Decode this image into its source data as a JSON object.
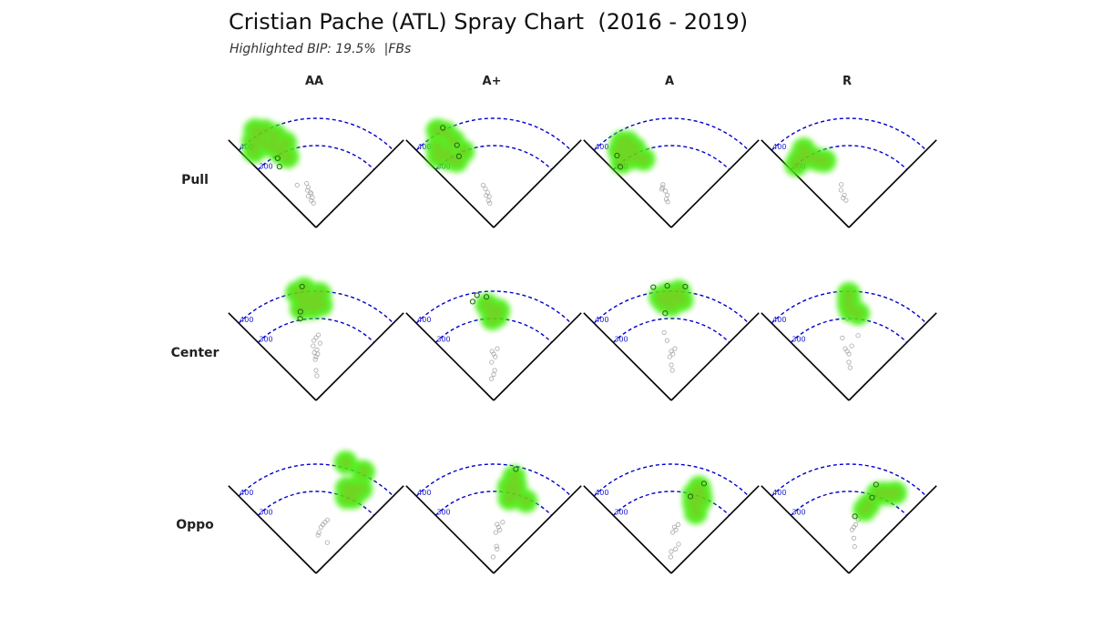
{
  "header": {
    "title": "Cristian Pache (ATL) Spray Chart  (2016 - 2019)",
    "subtitle": "Highlighted BIP: 19.5%  |FBs"
  },
  "columns": [
    "AA",
    "A+",
    "A",
    "R"
  ],
  "rows": [
    "Pull",
    "Center",
    "Oppo"
  ],
  "colors": {
    "field_line": "#000000",
    "arc": "#0000cc",
    "distance_label": "#1a1acc",
    "highlight": "#44ee11",
    "highlight_core": "#cc7722",
    "other_bip": "#aaaaaa"
  },
  "chart_data": {
    "type": "scatter",
    "title": "Cristian Pache (ATL) Spray Chart  (2016 - 2019)",
    "subtitle": "Highlighted BIP: 19.5%  |FBs",
    "distance_arcs_ft": [
      300,
      400
    ],
    "arc_labels": [
      "300",
      "400"
    ],
    "spray_angle_range_deg": [
      -45,
      45
    ],
    "angle_note": "spray angle in degrees, 0 = straight center, negative = toward pull (left) side; distance in feet",
    "panels": [
      {
        "row": "Pull",
        "col": "AA",
        "highlighted": [
          [
            -39,
            360
          ],
          [
            -36,
            390
          ],
          [
            -33,
            380
          ],
          [
            -30,
            350
          ],
          [
            -27,
            330
          ],
          [
            -25,
            300
          ],
          [
            -22,
            280
          ],
          [
            -32,
            420
          ],
          [
            -28,
            400
          ],
          [
            -24,
            370
          ],
          [
            -20,
            330
          ]
        ],
        "outline": [
          [
            -29,
            290
          ],
          [
            -31,
            260
          ]
        ],
        "other": [
          [
            -9,
            130
          ],
          [
            -11,
            150
          ],
          [
            -13,
            140
          ],
          [
            -7,
            110
          ],
          [
            -10,
            100
          ],
          [
            -12,
            165
          ],
          [
            -6,
            90
          ],
          [
            -24,
            170
          ],
          [
            -8,
            125
          ],
          [
            -14,
            118
          ]
        ]
      },
      {
        "row": "Pull",
        "col": "A+",
        "highlighted": [
          [
            -38,
            330
          ],
          [
            -35,
            360
          ],
          [
            -32,
            320
          ],
          [
            -30,
            410
          ],
          [
            -27,
            390
          ],
          [
            -25,
            350
          ],
          [
            -22,
            300
          ],
          [
            -29,
            280
          ],
          [
            -33,
            300
          ]
        ],
        "outline": [
          [
            -24,
            330
          ],
          [
            -26,
            290
          ],
          [
            -27,
            410
          ]
        ],
        "other": [
          [
            -10,
            130
          ],
          [
            -12,
            145
          ],
          [
            -8,
            115
          ],
          [
            -11,
            100
          ],
          [
            -14,
            160
          ],
          [
            -9,
            90
          ],
          [
            -13,
            120
          ]
        ]
      },
      {
        "row": "Pull",
        "col": "A",
        "highlighted": [
          [
            -37,
            300
          ],
          [
            -34,
            340
          ],
          [
            -31,
            310
          ],
          [
            -28,
            290
          ],
          [
            -25,
            320
          ],
          [
            -22,
            270
          ],
          [
            -30,
            360
          ],
          [
            -27,
            350
          ]
        ],
        "outline": [
          [
            -37,
            330
          ],
          [
            -40,
            290
          ]
        ],
        "other": [
          [
            -9,
            135
          ],
          [
            -12,
            150
          ],
          [
            -7,
            120
          ],
          [
            -10,
            105
          ],
          [
            -14,
            145
          ],
          [
            -8,
            95
          ],
          [
            -11,
            160
          ]
        ]
      },
      {
        "row": "Pull",
        "col": "R",
        "highlighted": [
          [
            -40,
            300
          ],
          [
            -36,
            310
          ],
          [
            -32,
            300
          ],
          [
            -28,
            290
          ],
          [
            -24,
            270
          ],
          [
            -20,
            260
          ],
          [
            -30,
            330
          ]
        ],
        "outline": [],
        "other": [
          [
            -10,
            160
          ],
          [
            -12,
            140
          ],
          [
            -8,
            120
          ],
          [
            -6,
            100
          ],
          [
            -11,
            110
          ]
        ]
      },
      {
        "row": "Center",
        "col": "AA",
        "highlighted": [
          [
            -8,
            380
          ],
          [
            -4,
            370
          ],
          [
            0,
            380
          ],
          [
            -10,
            400
          ],
          [
            -6,
            410
          ],
          [
            -2,
            340
          ],
          [
            3,
            350
          ],
          [
            -9,
            340
          ],
          [
            2,
            390
          ]
        ],
        "outline": [
          [
            -10,
            330
          ],
          [
            -11,
            305
          ],
          [
            -7,
            420
          ]
        ],
        "other": [
          [
            0,
            230
          ],
          [
            2,
            240
          ],
          [
            -2,
            220
          ],
          [
            0,
            160
          ],
          [
            2,
            170
          ],
          [
            -1,
            150
          ],
          [
            0,
            110
          ],
          [
            2,
            90
          ],
          [
            -3,
            200
          ],
          [
            4,
            210
          ],
          [
            1,
            185
          ],
          [
            -2,
            175
          ]
        ]
      },
      {
        "row": "Center",
        "col": "A+",
        "highlighted": [
          [
            -2,
            340
          ],
          [
            0,
            320
          ],
          [
            2,
            310
          ],
          [
            -1,
            300
          ],
          [
            3,
            330
          ],
          [
            -4,
            350
          ]
        ],
        "outline": [
          [
            -12,
            370
          ],
          [
            -9,
            390
          ],
          [
            -4,
            380
          ]
        ],
        "other": [
          [
            -2,
            180
          ],
          [
            0,
            170
          ],
          [
            2,
            160
          ],
          [
            4,
            190
          ],
          [
            -3,
            140
          ],
          [
            2,
            110
          ],
          [
            -6,
            80
          ],
          [
            0,
            95
          ]
        ]
      },
      {
        "row": "Center",
        "col": "A",
        "highlighted": [
          [
            -6,
            380
          ],
          [
            -2,
            390
          ],
          [
            2,
            380
          ],
          [
            6,
            370
          ],
          [
            0,
            350
          ],
          [
            -4,
            360
          ],
          [
            4,
            400
          ]
        ],
        "outline": [
          [
            -9,
            420
          ],
          [
            -2,
            420
          ],
          [
            7,
            420
          ],
          [
            -4,
            320
          ]
        ],
        "other": [
          [
            0,
            180
          ],
          [
            2,
            170
          ],
          [
            -2,
            160
          ],
          [
            4,
            190
          ],
          [
            -4,
            220
          ],
          [
            -6,
            250
          ],
          [
            0,
            130
          ],
          [
            2,
            110
          ]
        ]
      },
      {
        "row": "Center",
        "col": "R",
        "highlighted": [
          [
            0,
            390
          ],
          [
            0,
            370
          ],
          [
            0,
            350
          ],
          [
            1,
            330
          ],
          [
            6,
            320
          ]
        ],
        "outline": [],
        "other": [
          [
            -4,
            190
          ],
          [
            -2,
            180
          ],
          [
            0,
            170
          ],
          [
            3,
            200
          ],
          [
            -6,
            230
          ],
          [
            0,
            140
          ],
          [
            2,
            120
          ],
          [
            8,
            240
          ],
          [
            -1,
            300
          ]
        ]
      },
      {
        "row": "Oppo",
        "col": "AA",
        "highlighted": [
          [
            15,
            420
          ],
          [
            25,
            410
          ],
          [
            20,
            330
          ],
          [
            24,
            340
          ],
          [
            28,
            350
          ],
          [
            26,
            310
          ],
          [
            22,
            300
          ]
        ],
        "outline": [],
        "other": [
          [
            6,
            170
          ],
          [
            8,
            180
          ],
          [
            10,
            190
          ],
          [
            4,
            150
          ],
          [
            12,
            200
          ],
          [
            20,
            120
          ],
          [
            3,
            140
          ]
        ]
      },
      {
        "row": "Oppo",
        "col": "A+",
        "highlighted": [
          [
            12,
            360
          ],
          [
            14,
            330
          ],
          [
            16,
            300
          ],
          [
            12,
            280
          ],
          [
            10,
            320
          ],
          [
            24,
            290
          ]
        ],
        "outline": [
          [
            12,
            390
          ]
        ],
        "other": [
          [
            4,
            180
          ],
          [
            6,
            170
          ],
          [
            8,
            160
          ],
          [
            3,
            150
          ],
          [
            10,
            190
          ],
          [
            6,
            100
          ],
          [
            8,
            90
          ],
          [
            -2,
            60
          ]
        ]
      },
      {
        "row": "Oppo",
        "col": "A",
        "highlighted": [
          [
            18,
            330
          ],
          [
            20,
            310
          ],
          [
            22,
            290
          ],
          [
            18,
            270
          ],
          [
            16,
            300
          ],
          [
            22,
            240
          ]
        ],
        "outline": [
          [
            14,
            290
          ],
          [
            20,
            350
          ]
        ],
        "other": [
          [
            4,
            170
          ],
          [
            6,
            160
          ],
          [
            8,
            180
          ],
          [
            2,
            150
          ],
          [
            -2,
            60
          ],
          [
            0,
            80
          ],
          [
            10,
            90
          ],
          [
            14,
            110
          ]
        ]
      },
      {
        "row": "Oppo",
        "col": "R",
        "highlighted": [
          [
            20,
            310
          ],
          [
            24,
            320
          ],
          [
            28,
            330
          ],
          [
            30,
            340
          ],
          [
            16,
            260
          ],
          [
            14,
            240
          ]
        ],
        "outline": [
          [
            17,
            290
          ],
          [
            17,
            340
          ],
          [
            6,
            210
          ]
        ],
        "other": [
          [
            6,
            170
          ],
          [
            8,
            180
          ],
          [
            4,
            160
          ],
          [
            10,
            200
          ],
          [
            8,
            130
          ],
          [
            12,
            100
          ]
        ]
      }
    ]
  }
}
